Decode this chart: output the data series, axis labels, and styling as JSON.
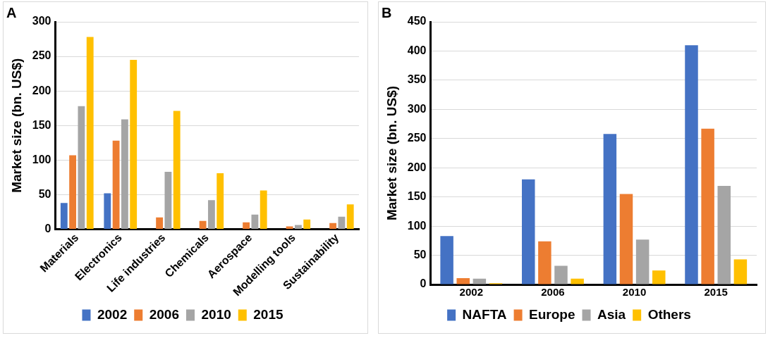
{
  "chart_data": [
    {
      "type": "bar",
      "title": "A",
      "ylabel": "Market size (bn. US$)",
      "categories": [
        "Materials",
        "Electronics",
        "Life industries",
        "Chemicals",
        "Aerospace",
        "Modelling tools",
        "Sustainability"
      ],
      "series": [
        {
          "name": "2002",
          "color": "#4472c4",
          "values": [
            38,
            52,
            null,
            null,
            0,
            0,
            0
          ]
        },
        {
          "name": "2006",
          "color": "#ed7d31",
          "values": [
            107,
            128,
            17,
            12,
            10,
            4,
            9
          ]
        },
        {
          "name": "2010",
          "color": "#a5a5a5",
          "values": [
            178,
            159,
            83,
            42,
            21,
            6,
            18
          ]
        },
        {
          "name": "2015",
          "color": "#ffc000",
          "values": [
            278,
            245,
            171,
            81,
            56,
            14,
            36
          ]
        }
      ],
      "ylim": [
        0,
        300
      ],
      "yticks": [
        0,
        50,
        100,
        150,
        200,
        250,
        300
      ],
      "grid": "y",
      "legend": "bottom"
    },
    {
      "type": "bar",
      "title": "B",
      "ylabel": "Market size (bn. US$)",
      "categories": [
        "2002",
        "2006",
        "2010",
        "2015"
      ],
      "series": [
        {
          "name": "NAFTA",
          "color": "#4472c4",
          "values": [
            83,
            180,
            258,
            410
          ]
        },
        {
          "name": "Europe",
          "color": "#ed7d31",
          "values": [
            11,
            74,
            155,
            267
          ]
        },
        {
          "name": "Asia",
          "color": "#a5a5a5",
          "values": [
            10,
            32,
            77,
            169
          ]
        },
        {
          "name": "Others",
          "color": "#ffc000",
          "values": [
            2,
            10,
            24,
            43
          ]
        }
      ],
      "ylim": [
        0,
        450
      ],
      "yticks": [
        0,
        50,
        100,
        150,
        200,
        250,
        300,
        350,
        400,
        450
      ],
      "grid": "y",
      "legend": "bottom"
    }
  ]
}
